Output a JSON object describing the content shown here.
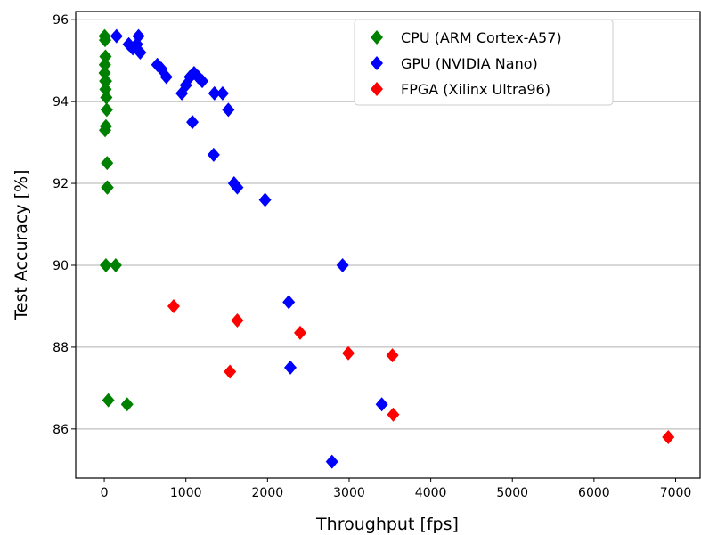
{
  "chart_data": {
    "type": "scatter",
    "title": "",
    "xlabel": "Throughput [fps]",
    "ylabel": "Test Accuracy [%]",
    "xlim": [
      -350,
      7300
    ],
    "ylim": [
      84.8,
      96.2
    ],
    "xticks": [
      "0",
      "1000",
      "2000",
      "3000",
      "4000",
      "5000",
      "6000",
      "7000"
    ],
    "yticks": [
      "86",
      "88",
      "90",
      "92",
      "94",
      "96"
    ],
    "grid": "horizontal",
    "legend_position": "top-center",
    "marker": "diamond",
    "series": [
      {
        "name": "CPU (ARM Cortex-A57)",
        "color": "#008000",
        "x": [
          5,
          10,
          15,
          8,
          5,
          12,
          20,
          15,
          25,
          30,
          20,
          10,
          35,
          40,
          35,
          20,
          140,
          50,
          280
        ],
        "y": [
          95.6,
          95.5,
          95.1,
          94.9,
          94.7,
          94.5,
          94.5,
          94.3,
          94.1,
          93.8,
          93.4,
          93.3,
          92.5,
          91.9,
          91.9,
          90.0,
          90.0,
          86.7,
          86.6
        ]
      },
      {
        "name": "GPU (NVIDIA Nano)",
        "color": "#0000ff",
        "x": [
          150,
          300,
          350,
          420,
          400,
          440,
          650,
          700,
          760,
          950,
          1000,
          1050,
          1100,
          1150,
          1200,
          1350,
          1450,
          1520,
          1080,
          1340,
          1590,
          1630,
          1970,
          2920,
          2260,
          2280,
          3400,
          2790
        ],
        "y": [
          95.6,
          95.4,
          95.3,
          95.6,
          95.4,
          95.2,
          94.9,
          94.8,
          94.6,
          94.2,
          94.4,
          94.6,
          94.7,
          94.6,
          94.5,
          94.2,
          94.2,
          93.8,
          93.5,
          92.7,
          92.0,
          91.9,
          91.6,
          90.0,
          89.1,
          87.5,
          86.6,
          85.2
        ]
      },
      {
        "name": "FPGA (Xilinx Ultra96)",
        "color": "#ff0000",
        "x": [
          850,
          1630,
          2400,
          2990,
          3530,
          1540,
          3540,
          6910
        ],
        "y": [
          89.0,
          88.65,
          88.35,
          87.85,
          87.8,
          87.4,
          86.35,
          85.8
        ]
      }
    ]
  }
}
